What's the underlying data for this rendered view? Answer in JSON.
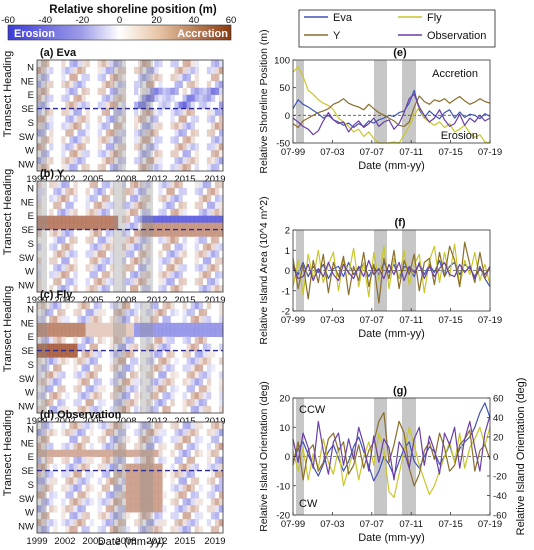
{
  "colorbar": {
    "title": "Relative shoreline position (m)",
    "ticks": [
      -60,
      -40,
      -20,
      0,
      20,
      40,
      60
    ],
    "erosion_label": "Erosion",
    "accretion_label": "Accretion",
    "colors": [
      "#3b3bd6",
      "#ffffff",
      "#8a3a10"
    ]
  },
  "heatmaps": {
    "ylabel": "Transect Heading",
    "xlabel": "Date (mm-yy)",
    "headings": [
      "N",
      "NE",
      "E",
      "SE",
      "S",
      "SW",
      "W",
      "NW"
    ],
    "years": [
      "1999",
      "2002",
      "2005",
      "2008",
      "2012",
      "2015",
      "2019"
    ],
    "panels": [
      {
        "title": "(a) Eva",
        "title_color": "#111111"
      },
      {
        "title": "(b) Y",
        "title_color": "#111111"
      },
      {
        "title": "(c) Fly",
        "title_color": "#111111"
      },
      {
        "title": "(d) Observation",
        "title_color": "#111111"
      }
    ]
  },
  "legend": {
    "items": [
      {
        "name": "Eva",
        "color": "#3f54b5"
      },
      {
        "name": "Fly",
        "color": "#c9c62a"
      },
      {
        "name": "Y",
        "color": "#8a6d2b"
      },
      {
        "name": "Observation",
        "color": "#6a3fa8"
      }
    ]
  },
  "chart_data": [
    {
      "panel": "(e)",
      "type": "line",
      "ylabel": "Relative Shoreline Position (m)",
      "xlabel": "Date (mm-yy)",
      "x_ticks": [
        "07-99",
        "07-03",
        "07-07",
        "07-11",
        "07-15",
        "07-19"
      ],
      "ylim": [
        -50,
        100
      ],
      "y_ticks": [
        -50,
        0,
        50,
        100
      ],
      "annotations": [
        "Accretion",
        "Erosion"
      ],
      "series": [
        {
          "name": "Eva",
          "color": "#3f54b5",
          "values": [
            12,
            28,
            20,
            15,
            9,
            3,
            -5,
            0,
            -8,
            -12,
            -18,
            -14,
            -22,
            -15,
            -20,
            -10,
            -14,
            -8,
            -5,
            0,
            -2,
            5,
            8,
            22,
            45,
            10,
            -5,
            8,
            0,
            -6,
            5,
            10,
            -5,
            6,
            -4,
            2,
            0,
            -6,
            3,
            -2
          ]
        },
        {
          "name": "Fly",
          "color": "#c9c62a",
          "values": [
            78,
            88,
            70,
            45,
            38,
            28,
            22,
            18,
            10,
            -5,
            -12,
            -20,
            -30,
            -25,
            -38,
            -30,
            -42,
            -55,
            -62,
            -58,
            -48,
            -52,
            -35,
            -20,
            0,
            15,
            -5,
            -12,
            -18,
            -12,
            -22,
            -15,
            -30,
            -25,
            -18,
            -32,
            -40,
            -35,
            -48,
            -52
          ]
        },
        {
          "name": "Y",
          "color": "#8a6d2b",
          "values": [
            -15,
            -22,
            -10,
            -5,
            0,
            5,
            8,
            12,
            20,
            24,
            30,
            22,
            18,
            15,
            10,
            20,
            12,
            5,
            0,
            -5,
            -10,
            -18,
            -20,
            -12,
            15,
            35,
            25,
            20,
            28,
            25,
            30,
            22,
            28,
            34,
            26,
            20,
            24,
            30,
            25,
            22
          ]
        },
        {
          "name": "Observation",
          "color": "#6a3fa8",
          "values": [
            -5,
            -12,
            -20,
            -25,
            -35,
            -28,
            -10,
            5,
            -8,
            -15,
            -12,
            -30,
            -18,
            -10,
            -22,
            -15,
            -5,
            -20,
            -12,
            -8,
            -25,
            -15,
            5,
            30,
            38,
            15,
            0,
            -12,
            -5,
            10,
            -8,
            -20,
            -15,
            2,
            -18,
            -5,
            -12,
            0,
            -10,
            -5
          ]
        }
      ]
    },
    {
      "panel": "(f)",
      "type": "line",
      "ylabel": "Relative Island Area (10^4 m^2)",
      "xlabel": "Date (mm-yy)",
      "x_ticks": [
        "07-99",
        "07-03",
        "07-07",
        "07-11",
        "07-15",
        "07-19"
      ],
      "ylim": [
        -2,
        2
      ],
      "y_ticks": [
        -2,
        -1,
        0,
        1,
        2
      ],
      "series": [
        {
          "name": "Eva",
          "color": "#3f54b5",
          "values": [
            0.3,
            -0.2,
            0.4,
            -0.3,
            0.2,
            -0.1,
            0.3,
            -0.4,
            0.1,
            0.2,
            -0.3,
            0.4,
            -0.2,
            0.1,
            0.3,
            -0.3,
            0.2,
            -0.2,
            0.4,
            -0.1,
            0.3,
            -0.4,
            0.2,
            0.1,
            -0.3,
            0.4,
            -0.2,
            0.3,
            -0.1,
            0.5,
            -0.3,
            0.2,
            0.4,
            -0.2,
            0.3,
            0.1,
            -0.3,
            0.2,
            -0.4,
            -0.8
          ]
        },
        {
          "name": "Fly",
          "color": "#c9c62a",
          "values": [
            -0.8,
            0.5,
            -1.2,
            0.8,
            -0.4,
            1.0,
            -0.6,
            0.3,
            0.9,
            -1.0,
            0.6,
            -0.2,
            1.1,
            -0.8,
            0.4,
            -1.3,
            0.9,
            -0.5,
            1.2,
            -0.9,
            0.6,
            -0.4,
            1.0,
            -0.7,
            0.3,
            0.8,
            -1.1,
            0.5,
            1.2,
            -0.6,
            0.9,
            -0.3,
            1.3,
            -0.8,
            0.5,
            -0.2,
            0.9,
            -0.5,
            0.3,
            -0.7
          ]
        },
        {
          "name": "Y",
          "color": "#8a6d2b",
          "values": [
            0.6,
            -0.9,
            0.3,
            -1.4,
            0.5,
            -0.6,
            0.8,
            -1.1,
            0.4,
            -0.3,
            0.7,
            -1.2,
            0.2,
            -0.5,
            0.9,
            -0.8,
            0.3,
            -1.6,
            0.6,
            -0.4,
            1.0,
            -0.9,
            0.5,
            -0.2,
            0.8,
            -1.0,
            0.4,
            0.6,
            -0.7,
            0.9,
            -0.3,
            1.2,
            0.5,
            -0.8,
            1.4,
            0.3,
            -0.6,
            0.9,
            -0.4,
            0.2
          ]
        },
        {
          "name": "Observation",
          "color": "#6a3fa8",
          "values": [
            0.2,
            -0.4,
            -0.3,
            0.3,
            -0.5,
            0.1,
            -0.3,
            0.4,
            -0.2,
            -0.5,
            0.3,
            -0.1,
            -0.4,
            0.2,
            -0.3,
            0.5,
            -0.2,
            0.1,
            -0.4,
            0.3,
            -0.2,
            0.4,
            -0.5,
            0.2,
            -0.1,
            0.3,
            -0.4,
            0.2,
            -0.3,
            0.1,
            0.4,
            -0.2,
            -0.3,
            0.3,
            -0.1,
            0.2,
            -0.4,
            0.1,
            -0.2,
            0.2
          ]
        }
      ]
    },
    {
      "panel": "(g)",
      "type": "line",
      "ylabel": "Relative Island Orientation (deg)",
      "y2label": "Relative Island Orientation (deg)",
      "xlabel": "Date (mm-yy)",
      "x_ticks": [
        "07-99",
        "07-03",
        "07-07",
        "07-11",
        "07-15",
        "07-19"
      ],
      "ylim": [
        -20,
        20
      ],
      "y_ticks": [
        -20,
        -10,
        0,
        10,
        20
      ],
      "y2lim": [
        -60,
        60
      ],
      "y2_ticks": [
        -60,
        -40,
        -20,
        0,
        20,
        40,
        60
      ],
      "y2_color": "#3f54b5",
      "annotations": [
        "CCW",
        "CW"
      ],
      "series": [
        {
          "name": "Eva",
          "color": "#3f54b5",
          "axis": "right",
          "values": [
            -5,
            8,
            15,
            2,
            -10,
            -20,
            -8,
            5,
            12,
            -2,
            -15,
            -5,
            10,
            20,
            5,
            -10,
            -25,
            -15,
            0,
            -8,
            -20,
            -5,
            8,
            15,
            -5,
            -12,
            0,
            10,
            5,
            -8,
            0,
            12,
            -5,
            8,
            15,
            20,
            30,
            45,
            55,
            40
          ]
        },
        {
          "name": "Fly",
          "color": "#c9c62a",
          "axis": "left",
          "values": [
            2,
            -5,
            3,
            -8,
            1,
            -4,
            6,
            -2,
            -6,
            3,
            -10,
            -4,
            2,
            -8,
            0,
            5,
            -3,
            8,
            2,
            -12,
            -14,
            -6,
            2,
            10,
            4,
            -3,
            -8,
            -13,
            -10,
            -5,
            0,
            5,
            -2,
            8,
            -4,
            3,
            6,
            10,
            4,
            10
          ]
        },
        {
          "name": "Y",
          "color": "#8a6d2b",
          "axis": "left",
          "values": [
            -3,
            5,
            -8,
            2,
            4,
            -5,
            -2,
            6,
            8,
            2,
            5,
            -6,
            -3,
            4,
            -4,
            2,
            5,
            12,
            15,
            -2,
            4,
            12,
            8,
            -4,
            -10,
            -6,
            2,
            5,
            -1,
            8,
            3,
            -5,
            -3,
            4,
            6,
            9,
            -5,
            2,
            4,
            -1
          ]
        },
        {
          "name": "Observation",
          "color": "#6a3fa8",
          "axis": "left",
          "values": [
            6,
            -2,
            8,
            3,
            -4,
            12,
            2,
            -6,
            5,
            8,
            -3,
            6,
            -1,
            10,
            4,
            -5,
            7,
            -2,
            6,
            3,
            -8,
            5,
            2,
            -4,
            6,
            10,
            -3,
            7,
            2,
            -6,
            8,
            4,
            10,
            -4,
            6,
            12,
            3,
            -5,
            8,
            14
          ]
        }
      ]
    }
  ]
}
